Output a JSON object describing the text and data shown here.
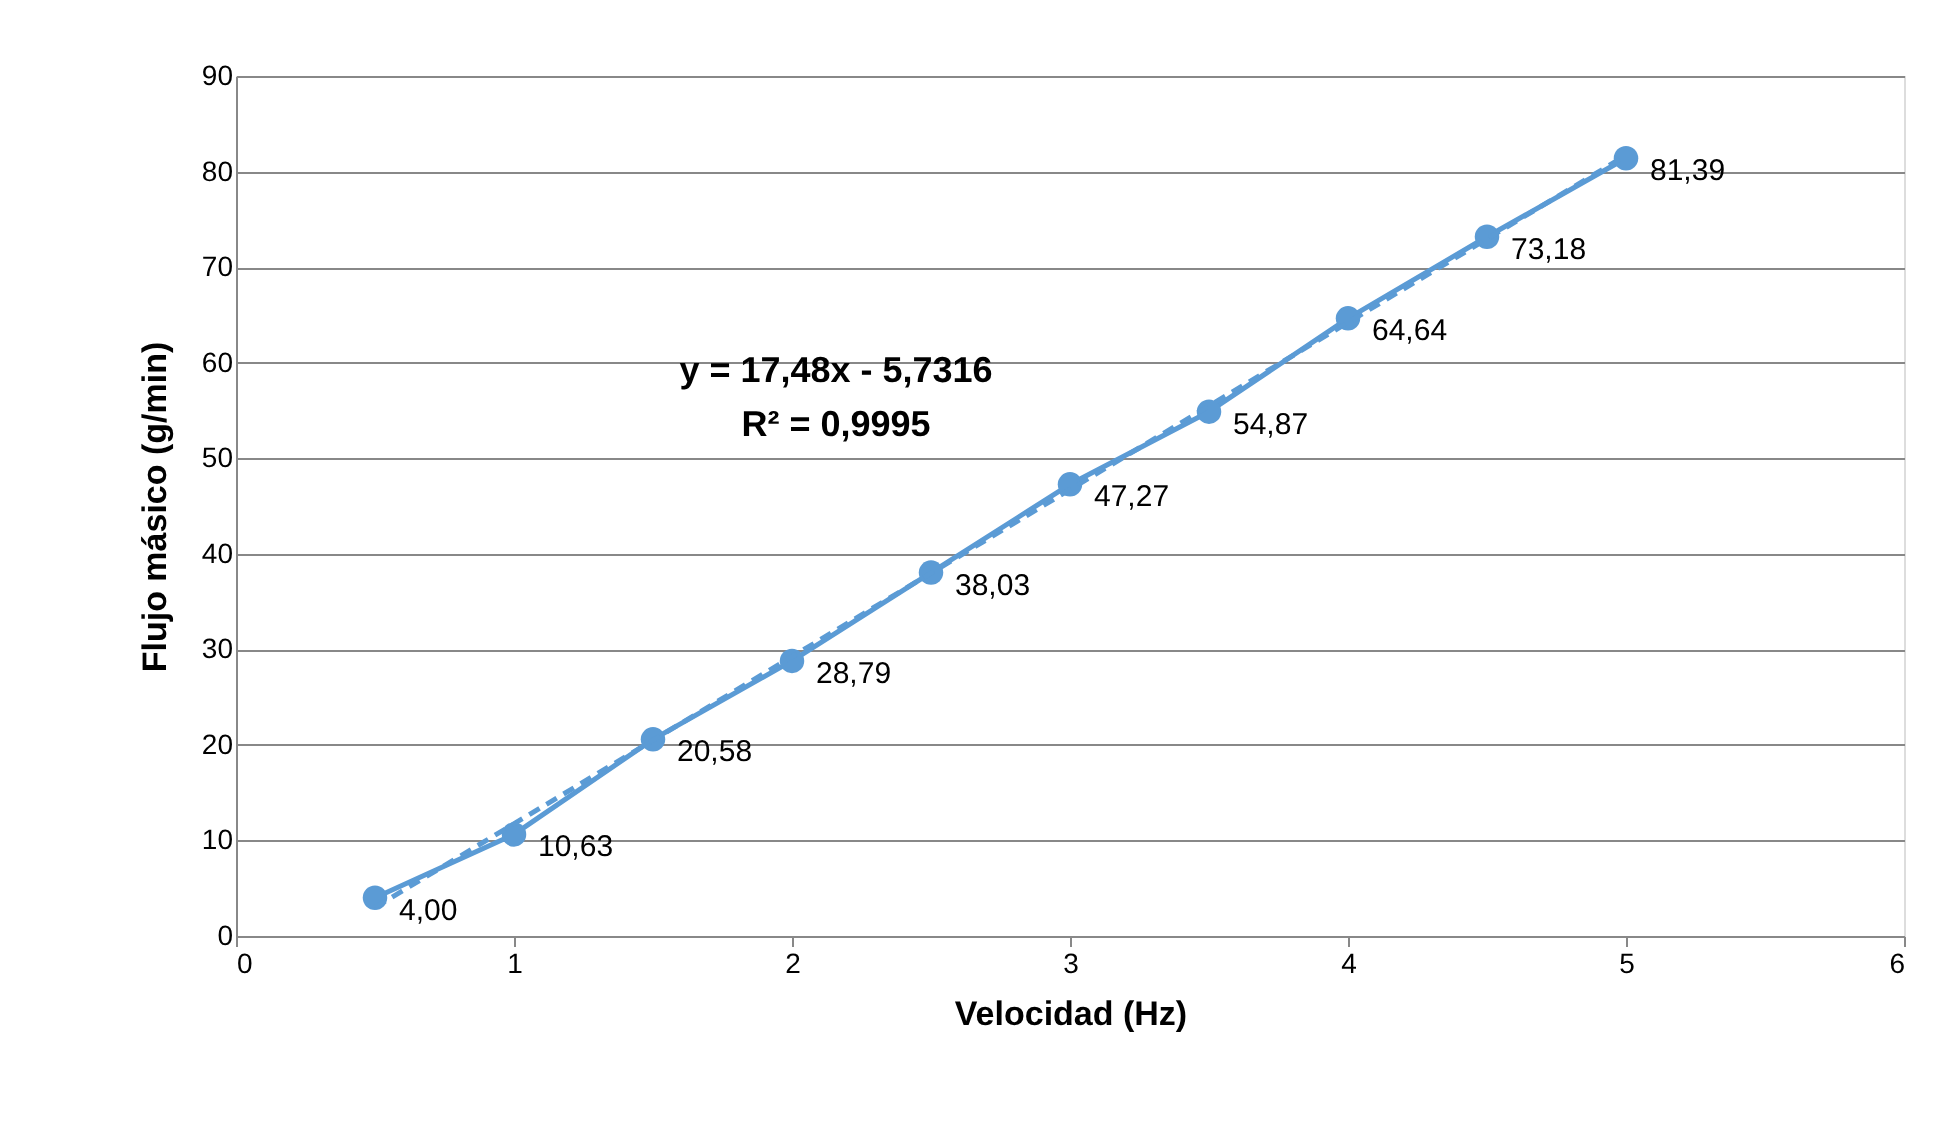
{
  "chart_data": {
    "type": "line",
    "xlabel": "Velocidad (Hz)",
    "ylabel": "Flujo másico (g/min)",
    "x": [
      0.5,
      1,
      1.5,
      2,
      2.5,
      3,
      3.5,
      4,
      4.5,
      5
    ],
    "series": [
      {
        "color": "#5b9bd5",
        "marker": "circle",
        "line_style": "solid",
        "values": [
          4.0,
          10.63,
          20.58,
          28.79,
          38.03,
          47.27,
          54.87,
          64.64,
          73.18,
          81.39
        ],
        "value_labels": [
          "4,00",
          "10,63",
          "20,58",
          "28,79",
          "38,03",
          "47,27",
          "54,87",
          "64,64",
          "73,18",
          "81,39"
        ]
      },
      {
        "type": "line",
        "color": "#5b9bd5",
        "marker": "none",
        "line_style": "dashed",
        "x": [
          0.5,
          5
        ],
        "values": [
          3.0,
          81.7
        ]
      }
    ],
    "annotations": [
      "y = 17,48x - 5,7316",
      "R² = 0,9995"
    ],
    "xlim": [
      0,
      6
    ],
    "xticks": [
      0,
      1,
      2,
      3,
      4,
      5,
      6
    ],
    "ylim": [
      0,
      90
    ],
    "yticks": [
      0,
      10,
      20,
      30,
      40,
      50,
      60,
      70,
      80,
      90
    ],
    "grid": "y",
    "legend": false
  }
}
